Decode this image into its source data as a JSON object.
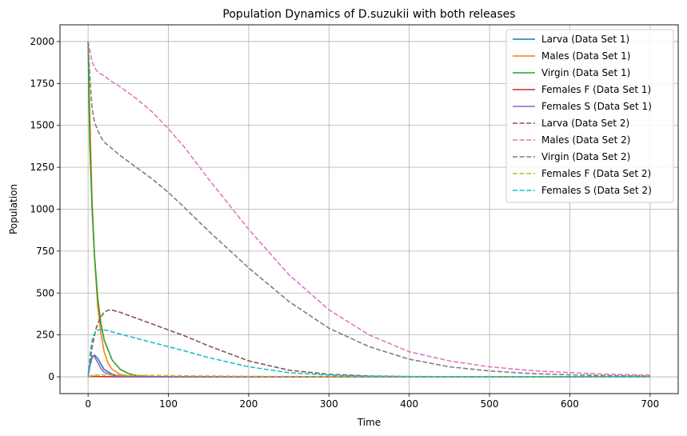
{
  "chart_data": {
    "type": "line",
    "title": "Population Dynamics of D.suzukii with both releases",
    "xlabel": "Time",
    "ylabel": "Population",
    "xlim": [
      -35,
      735
    ],
    "ylim": [
      -100,
      2100
    ],
    "x_ticks": [
      0,
      100,
      200,
      300,
      400,
      500,
      600,
      700
    ],
    "y_ticks": [
      0,
      250,
      500,
      750,
      1000,
      1250,
      1500,
      1750,
      2000
    ],
    "grid": true,
    "legend_position": "top-right",
    "series": [
      {
        "name": "Larva (Data Set 1)",
        "color": "#1f77b4",
        "dash": "solid",
        "x": [
          0,
          2,
          5,
          8,
          12,
          16,
          20,
          30,
          40,
          60,
          100,
          700
        ],
        "y": [
          0,
          60,
          115,
          130,
          110,
          75,
          45,
          15,
          5,
          1,
          0,
          0
        ]
      },
      {
        "name": "Males (Data Set 1)",
        "color": "#ff7f0e",
        "dash": "solid",
        "x": [
          0,
          2,
          5,
          8,
          12,
          16,
          20,
          25,
          30,
          40,
          50,
          60,
          80,
          100,
          700
        ],
        "y": [
          2000,
          1600,
          1050,
          720,
          420,
          260,
          150,
          80,
          45,
          15,
          5,
          2,
          0,
          0,
          0
        ]
      },
      {
        "name": "Virgin (Data Set 1)",
        "color": "#2ca02c",
        "dash": "solid",
        "x": [
          0,
          2,
          5,
          8,
          12,
          16,
          20,
          30,
          40,
          50,
          60,
          80,
          100,
          700
        ],
        "y": [
          2000,
          1400,
          1000,
          720,
          470,
          320,
          220,
          100,
          45,
          20,
          8,
          2,
          0,
          0
        ]
      },
      {
        "name": "Females F (Data Set 1)",
        "color": "#d62728",
        "dash": "solid",
        "x": [
          0,
          5,
          10,
          20,
          40,
          100,
          700
        ],
        "y": [
          0,
          3,
          2,
          1,
          0,
          0,
          0
        ]
      },
      {
        "name": "Females S (Data Set 1)",
        "color": "#9467bd",
        "dash": "solid",
        "x": [
          0,
          2,
          5,
          8,
          12,
          16,
          20,
          30,
          40,
          60,
          100,
          700
        ],
        "y": [
          0,
          70,
          125,
          120,
          85,
          50,
          28,
          8,
          2,
          0,
          0,
          0
        ]
      },
      {
        "name": "Larva (Data Set 2)",
        "color": "#8c564b",
        "dash": "dashed",
        "x": [
          0,
          5,
          10,
          15,
          20,
          25,
          30,
          40,
          60,
          80,
          100,
          120,
          150,
          200,
          250,
          300,
          350,
          400,
          500,
          600,
          700
        ],
        "y": [
          0,
          180,
          290,
          350,
          385,
          398,
          398,
          385,
          350,
          315,
          280,
          245,
          185,
          95,
          40,
          15,
          5,
          2,
          0,
          0,
          0
        ]
      },
      {
        "name": "Males (Data Set 2)",
        "color": "#e377c2",
        "dash": "dashed",
        "x": [
          0,
          5,
          10,
          15,
          20,
          30,
          40,
          60,
          80,
          100,
          120,
          150,
          200,
          250,
          300,
          350,
          400,
          450,
          500,
          550,
          600,
          650,
          700
        ],
        "y": [
          2000,
          1880,
          1830,
          1810,
          1795,
          1760,
          1730,
          1660,
          1580,
          1480,
          1370,
          1180,
          880,
          610,
          400,
          250,
          150,
          95,
          60,
          38,
          25,
          15,
          10
        ]
      },
      {
        "name": "Virgin (Data Set 2)",
        "color": "#7f7f7f",
        "dash": "dashed",
        "x": [
          0,
          2,
          5,
          8,
          12,
          16,
          20,
          30,
          40,
          60,
          80,
          100,
          120,
          150,
          200,
          250,
          300,
          350,
          400,
          450,
          500,
          550,
          600,
          650,
          700
        ],
        "y": [
          2000,
          1800,
          1600,
          1520,
          1470,
          1430,
          1400,
          1360,
          1320,
          1250,
          1180,
          1100,
          1010,
          870,
          650,
          450,
          290,
          180,
          105,
          60,
          35,
          20,
          12,
          7,
          4
        ]
      },
      {
        "name": "Females F (Data Set 2)",
        "color": "#bcbd22",
        "dash": "dashed",
        "x": [
          0,
          5,
          10,
          20,
          30,
          50,
          100,
          200,
          300,
          700
        ],
        "y": [
          0,
          8,
          11,
          12,
          11,
          10,
          7,
          3,
          1,
          0
        ]
      },
      {
        "name": "Females S (Data Set 2)",
        "color": "#17becf",
        "dash": "dashed",
        "x": [
          0,
          3,
          6,
          10,
          15,
          20,
          25,
          30,
          40,
          60,
          80,
          100,
          120,
          150,
          200,
          250,
          300,
          350,
          400,
          500,
          700
        ],
        "y": [
          0,
          160,
          240,
          275,
          283,
          280,
          275,
          268,
          255,
          230,
          205,
          180,
          155,
          115,
          60,
          25,
          10,
          4,
          1,
          0,
          0
        ]
      }
    ]
  }
}
